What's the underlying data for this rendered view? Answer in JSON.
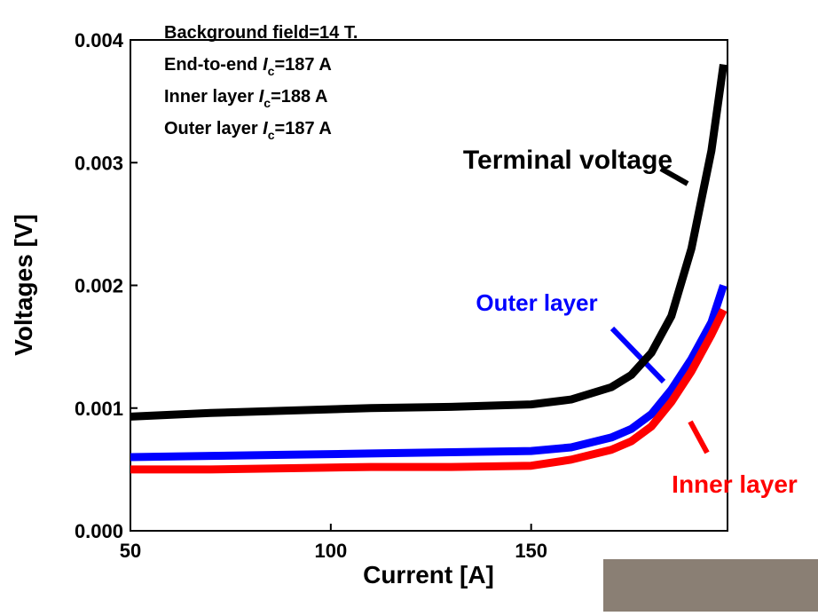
{
  "chart_data": {
    "type": "line",
    "xlabel": "Current [A]",
    "ylabel": "Voltages [V]",
    "xlim": [
      50,
      199
    ],
    "ylim": [
      0,
      0.004
    ],
    "xticks": [
      50,
      100,
      150
    ],
    "yticks": [
      {
        "value": 0,
        "label": "0.000"
      },
      0.001,
      0.002,
      0.003,
      0.004
    ],
    "info": [
      {
        "text": "Background field=14 T."
      },
      {
        "text": "End-to-end ",
        "symbol": "I",
        "subscript": "c",
        "suffix": "=187 A"
      },
      {
        "text": "Inner layer ",
        "symbol": "I",
        "subscript": "c",
        "suffix": "=188 A"
      },
      {
        "text": "Outer layer ",
        "symbol": "I",
        "subscript": "c",
        "suffix": "=187 A"
      }
    ],
    "x": [
      50,
      70,
      90,
      110,
      130,
      150,
      160,
      170,
      175,
      180,
      185,
      190,
      195,
      198
    ],
    "series": [
      {
        "name": "Terminal voltage",
        "color": "#000000",
        "values": [
          0.00093,
          0.00096,
          0.00098,
          0.001,
          0.00101,
          0.00103,
          0.00107,
          0.00117,
          0.00127,
          0.00145,
          0.00175,
          0.0023,
          0.0031,
          0.0038
        ]
      },
      {
        "name": "Outer layer",
        "color": "#0000ff",
        "values": [
          0.0006,
          0.00061,
          0.00062,
          0.00063,
          0.00064,
          0.00065,
          0.00068,
          0.00076,
          0.00083,
          0.00095,
          0.00115,
          0.0014,
          0.0017,
          0.002
        ]
      },
      {
        "name": "Inner layer",
        "color": "#ff0000",
        "values": [
          0.0005,
          0.0005,
          0.00051,
          0.00052,
          0.00052,
          0.00053,
          0.00058,
          0.00066,
          0.00073,
          0.00085,
          0.00105,
          0.0013,
          0.0016,
          0.0018
        ]
      }
    ]
  }
}
